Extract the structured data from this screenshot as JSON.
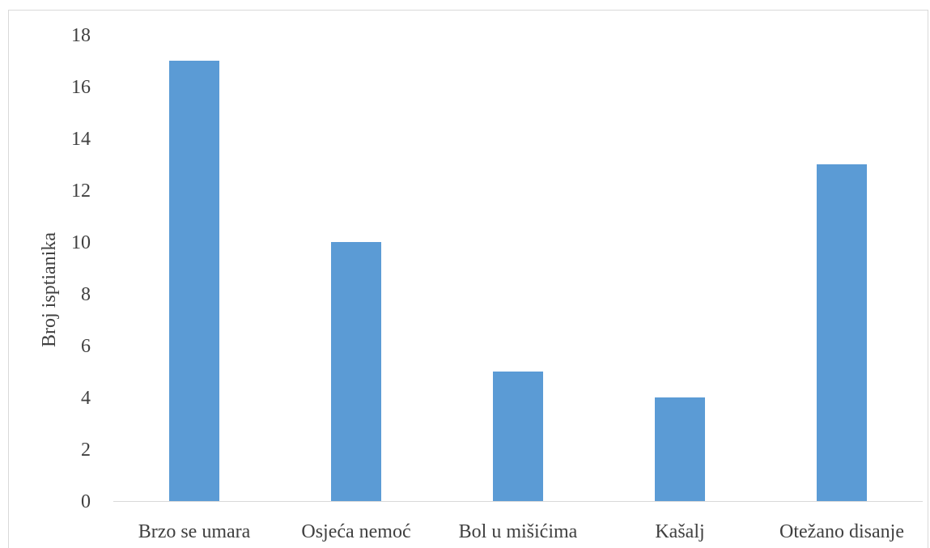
{
  "chart_data": {
    "type": "bar",
    "title": "",
    "xlabel": "",
    "ylabel": "Broj isptianika",
    "categories": [
      "Brzo se umara",
      "Osjeća nemoć",
      "Bol u mišićima",
      "Kašalj",
      "Otežano disanje"
    ],
    "values": [
      17,
      10,
      5,
      4,
      13
    ],
    "ylim": [
      0,
      18
    ],
    "yticks": [
      0,
      2,
      4,
      6,
      8,
      10,
      12,
      14,
      16,
      18
    ],
    "grid": false,
    "bar_color": "#5b9bd5",
    "axis_color": "#d9d9d9"
  }
}
